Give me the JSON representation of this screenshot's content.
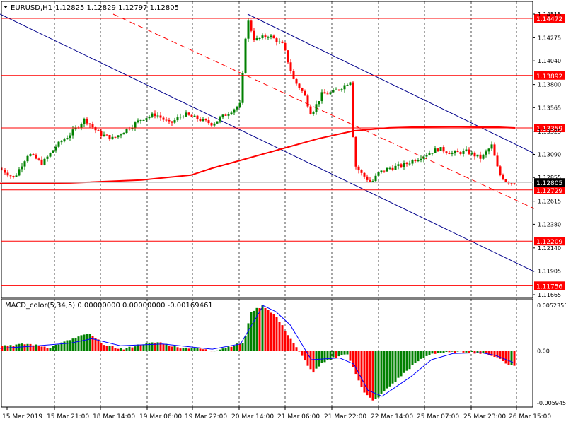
{
  "header": {
    "symbol": "EURUSD,H1",
    "ohlc": "1.12825 1.12829 1.12797 1.12805"
  },
  "macd_header": "MACD_color(5,34,5) 0.00000000 0.00000000 -0.00169461",
  "colors": {
    "bull": "#008000",
    "bear": "#ff0000",
    "level": "#ff0000",
    "channel": "#00008b",
    "ma": "#ff0000",
    "signal": "#0000ff"
  },
  "chart_data": [
    {
      "type": "candlestick",
      "symbol": "EURUSD",
      "timeframe": "H1",
      "ylim": [
        1.11665,
        1.14515
      ],
      "y_ticks": [
        1.14515,
        1.14275,
        1.1404,
        1.138,
        1.13565,
        1.13325,
        1.1309,
        1.12855,
        1.12615,
        1.1238,
        1.1214,
        1.11905,
        1.11665
      ],
      "x_ticks": [
        "15 Mar 2019",
        "15 Mar 21:00",
        "18 Mar 14:00",
        "19 Mar 06:00",
        "19 Mar 22:00",
        "20 Mar 14:00",
        "21 Mar 06:00",
        "21 Mar 22:00",
        "22 Mar 14:00",
        "25 Mar 07:00",
        "25 Mar 23:00",
        "26 Mar 15:00"
      ],
      "levels": [
        "1.14472",
        "1.13892",
        "1.13359",
        "1.12729",
        "1.12209",
        "1.11756"
      ],
      "current_price": "1.12805",
      "close_path": [
        [
          0,
          1.1295
        ],
        [
          20,
          1.1285
        ],
        [
          40,
          1.131
        ],
        [
          60,
          1.13
        ],
        [
          80,
          1.1318
        ],
        [
          100,
          1.133
        ],
        [
          120,
          1.1345
        ],
        [
          140,
          1.133
        ],
        [
          160,
          1.1325
        ],
        [
          180,
          1.1335
        ],
        [
          200,
          1.1345
        ],
        [
          220,
          1.135
        ],
        [
          240,
          1.134
        ],
        [
          260,
          1.135
        ],
        [
          280,
          1.1345
        ],
        [
          300,
          1.134
        ],
        [
          320,
          1.135
        ],
        [
          340,
          1.136
        ],
        [
          349,
          1.1448
        ],
        [
          360,
          1.1425
        ],
        [
          380,
          1.143
        ],
        [
          400,
          1.142
        ],
        [
          415,
          1.1385
        ],
        [
          430,
          1.137
        ],
        [
          440,
          1.135
        ],
        [
          455,
          1.137
        ],
        [
          470,
          1.1372
        ],
        [
          485,
          1.1378
        ],
        [
          497,
          1.1385
        ],
        [
          500,
          1.13
        ],
        [
          510,
          1.129
        ],
        [
          525,
          1.128
        ],
        [
          535,
          1.129
        ],
        [
          550,
          1.1295
        ],
        [
          570,
          1.1298
        ],
        [
          590,
          1.1305
        ],
        [
          605,
          1.131
        ],
        [
          620,
          1.1315
        ],
        [
          640,
          1.131
        ],
        [
          660,
          1.1312
        ],
        [
          680,
          1.1305
        ],
        [
          695,
          1.1318
        ],
        [
          705,
          1.129
        ],
        [
          715,
          1.1282
        ],
        [
          725,
          1.128
        ]
      ],
      "ma_path": [
        [
          0,
          1.12795
        ],
        [
          100,
          1.128
        ],
        [
          200,
          1.1283
        ],
        [
          270,
          1.1288
        ],
        [
          300,
          1.1295
        ],
        [
          340,
          1.1303
        ],
        [
          400,
          1.1315
        ],
        [
          450,
          1.1325
        ],
        [
          500,
          1.1333
        ],
        [
          550,
          1.1336
        ],
        [
          600,
          1.1337
        ],
        [
          650,
          1.13372
        ],
        [
          700,
          1.13368
        ],
        [
          728,
          1.13359
        ]
      ],
      "channel_lines": [
        {
          "from": [
            0,
            1.14515
          ],
          "to": [
            755,
            1.119
          ]
        },
        {
          "from": [
            350,
            1.14515
          ],
          "to": [
            755,
            1.131
          ]
        },
        {
          "from": [
            160,
            1.14515
          ],
          "to": [
            755,
            1.1254
          ],
          "style": "dashed"
        }
      ]
    },
    {
      "type": "bar",
      "name": "MACD_color(5,34,5)",
      "ylim": [
        -0.005945,
        0.005235
      ],
      "y_ticks": [
        "0.0052355",
        "0.00",
        "-0.0059454"
      ],
      "hist_path": [
        [
          0,
          0.0006
        ],
        [
          40,
          0.0008
        ],
        [
          70,
          0.0004
        ],
        [
          100,
          0.0013
        ],
        [
          125,
          0.002
        ],
        [
          150,
          0.0006
        ],
        [
          175,
          0.0002
        ],
        [
          200,
          0.0008
        ],
        [
          225,
          0.001
        ],
        [
          250,
          0.0004
        ],
        [
          280,
          0.0003
        ],
        [
          300,
          0.0
        ],
        [
          320,
          0.0004
        ],
        [
          345,
          0.001
        ],
        [
          355,
          0.0045
        ],
        [
          372,
          0.0052
        ],
        [
          390,
          0.004
        ],
        [
          410,
          0.0015
        ],
        [
          430,
          -0.001
        ],
        [
          442,
          -0.0025
        ],
        [
          455,
          -0.0015
        ],
        [
          470,
          -0.0008
        ],
        [
          490,
          -0.0003
        ],
        [
          500,
          -0.002
        ],
        [
          515,
          -0.0048
        ],
        [
          528,
          -0.0058
        ],
        [
          545,
          -0.0045
        ],
        [
          565,
          -0.003
        ],
        [
          590,
          -0.0012
        ],
        [
          610,
          -0.0003
        ],
        [
          630,
          -0.0002
        ],
        [
          660,
          -0.0001
        ],
        [
          690,
          -0.0004
        ],
        [
          705,
          -0.0008
        ],
        [
          715,
          -0.0014
        ],
        [
          725,
          -0.0017
        ]
      ],
      "signal_path": [
        [
          0,
          0.0003
        ],
        [
          40,
          0.0005
        ],
        [
          100,
          0.0009
        ],
        [
          130,
          0.0014
        ],
        [
          170,
          0.0006
        ],
        [
          230,
          0.0008
        ],
        [
          300,
          0.0002
        ],
        [
          340,
          0.0008
        ],
        [
          372,
          0.0052
        ],
        [
          390,
          0.0045
        ],
        [
          410,
          0.003
        ],
        [
          440,
          -0.001
        ],
        [
          480,
          -0.0008
        ],
        [
          500,
          -0.0015
        ],
        [
          520,
          -0.0045
        ],
        [
          540,
          -0.0052
        ],
        [
          580,
          -0.003
        ],
        [
          610,
          -0.001
        ],
        [
          640,
          -0.0003
        ],
        [
          680,
          -0.0002
        ],
        [
          700,
          -0.0005
        ],
        [
          725,
          -0.0013
        ]
      ]
    }
  ]
}
